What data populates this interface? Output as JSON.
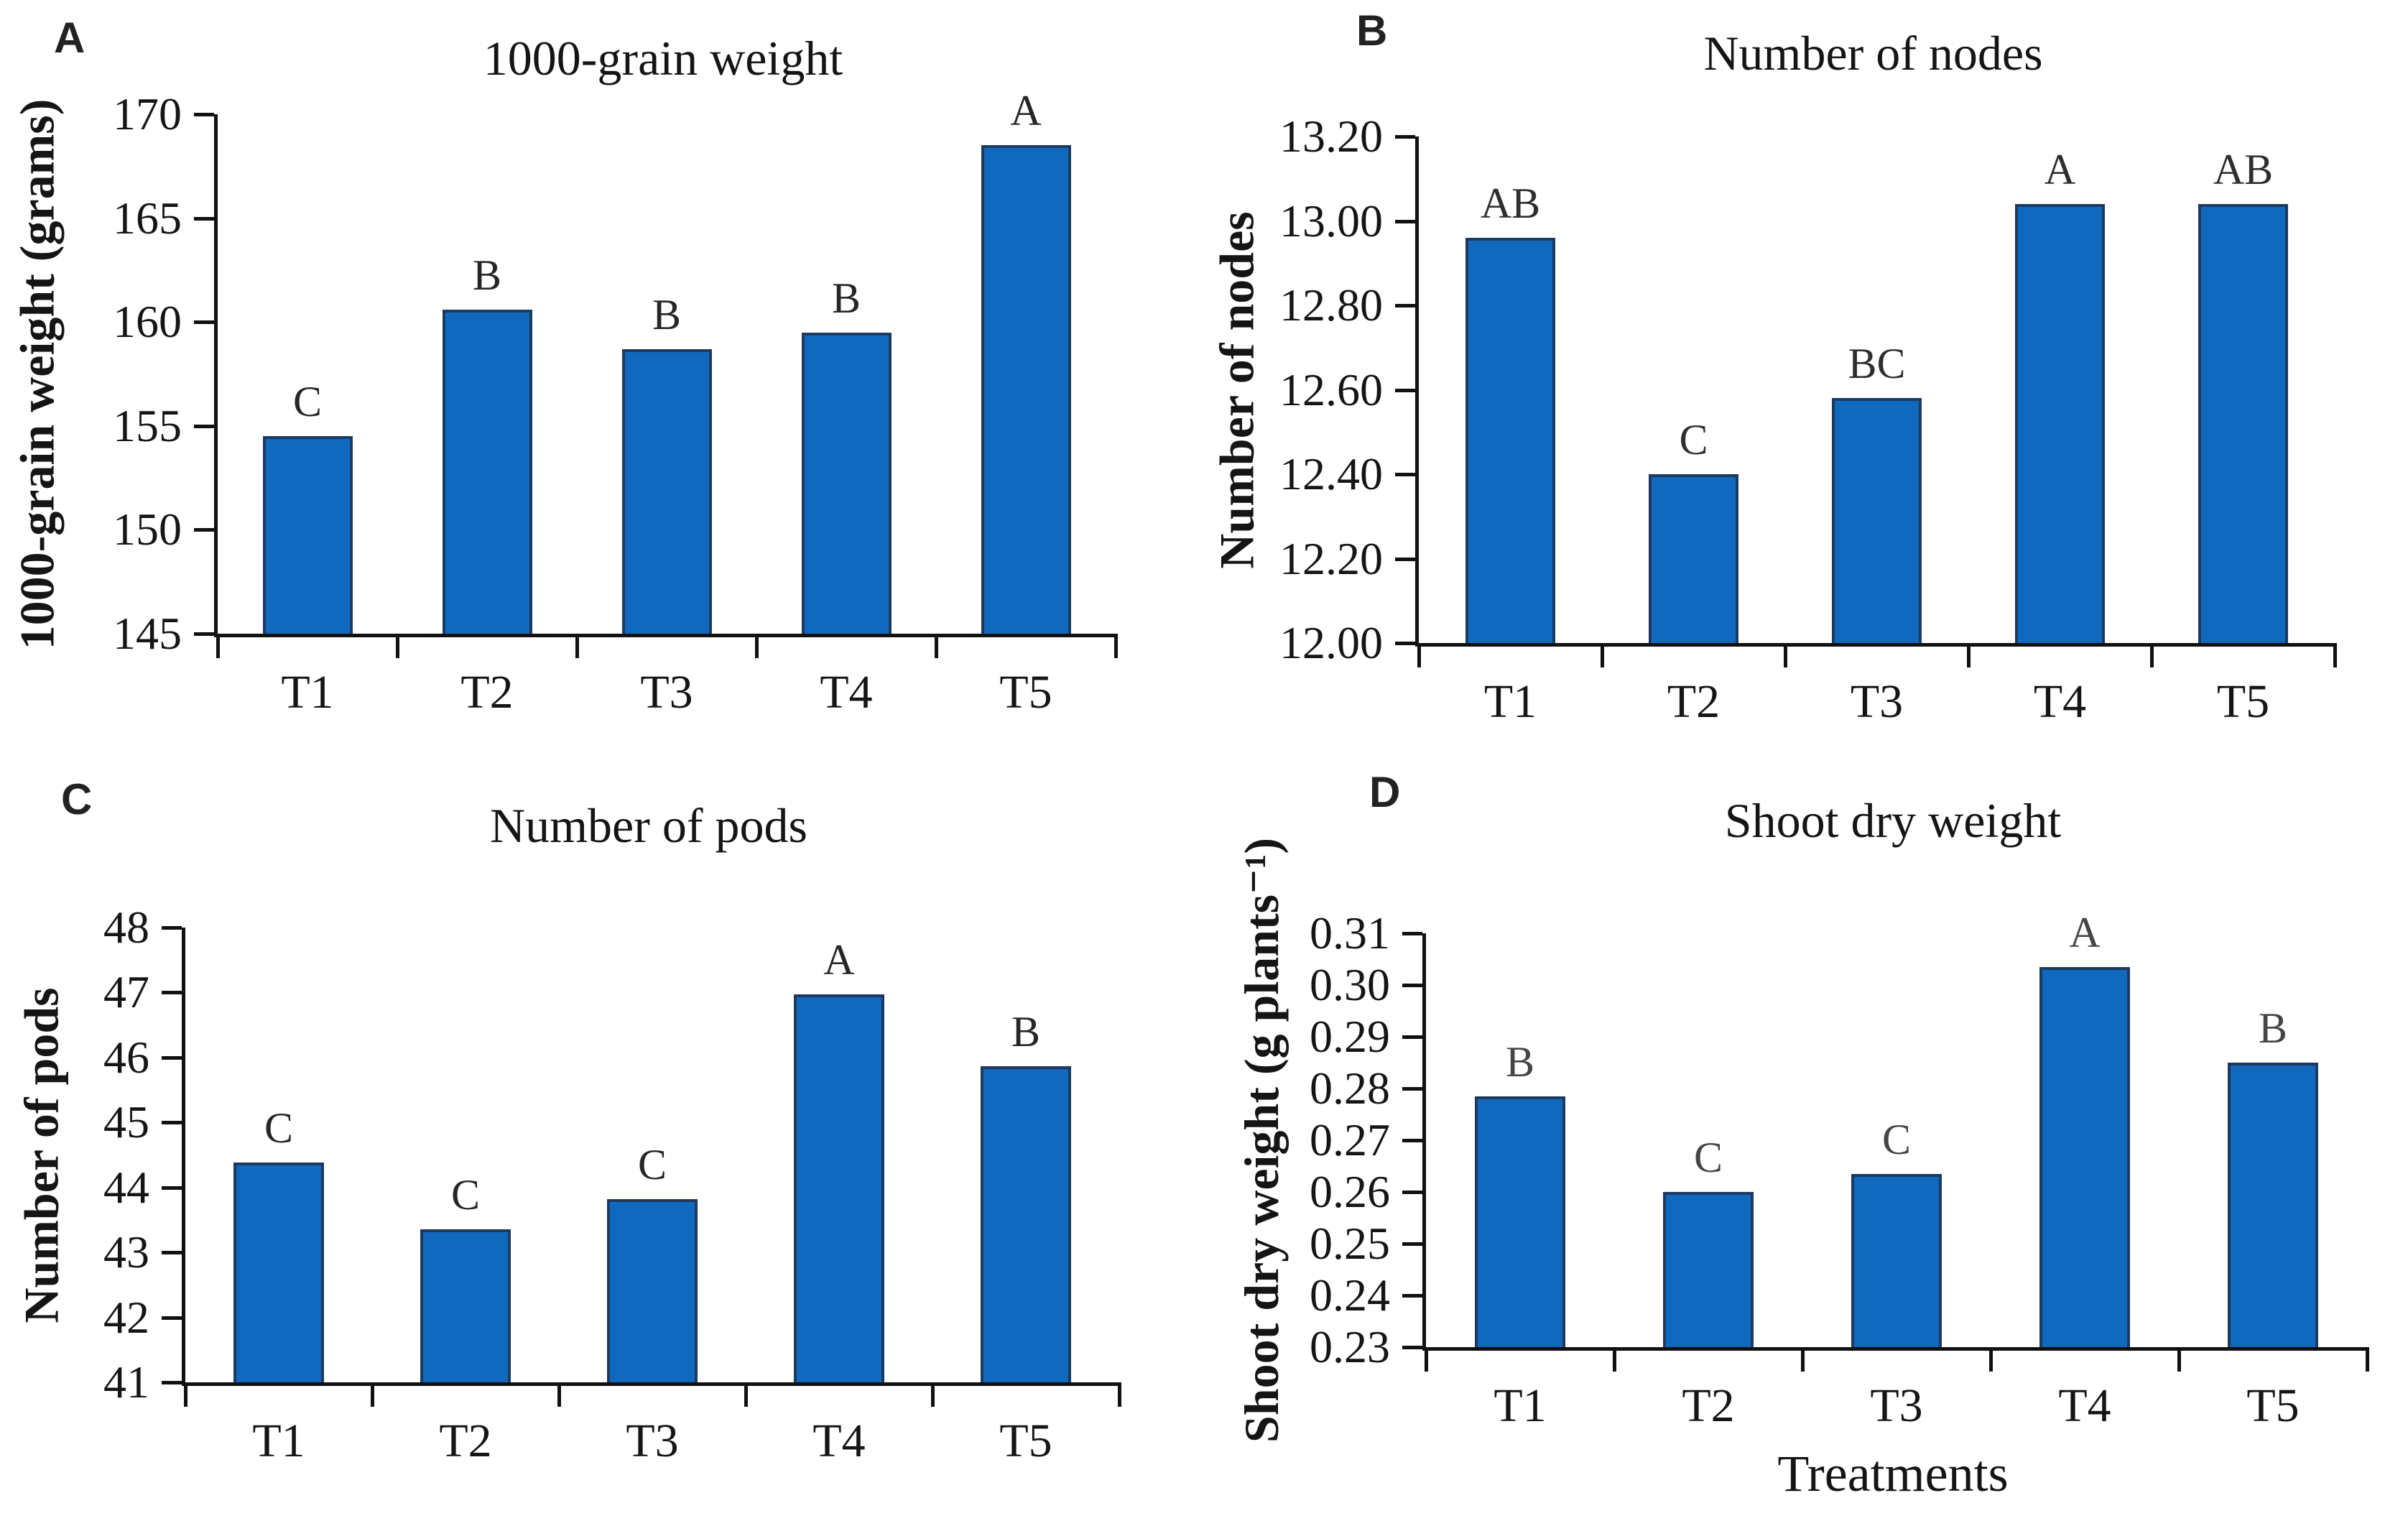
{
  "colors": {
    "bar_fill": "#1169be",
    "bar_border": "#1c3a60",
    "axis": "#111111",
    "text": "#1a1a1a"
  },
  "chart_data": [
    {
      "type": "bar",
      "panel_label": "A",
      "title": "1000-grain weight",
      "ylabel": "1000-grain weight (grams)",
      "categories": [
        "T1",
        "T2",
        "T3",
        "T4",
        "T5"
      ],
      "values": [
        154.5,
        160.6,
        158.7,
        159.5,
        168.5
      ],
      "sig_letters": [
        "C",
        "B",
        "B",
        "B",
        "A"
      ],
      "ylim": [
        145,
        170
      ],
      "ytick_values": [
        145,
        150,
        155,
        160,
        165,
        170
      ],
      "ytick_labels": [
        "145",
        "150",
        "155",
        "160",
        "165",
        "170"
      ],
      "grid": "off",
      "legend": "none",
      "bar_color": "#1169be",
      "bar_border": "#1c3a60",
      "sig_color": "#262626"
    },
    {
      "type": "bar",
      "panel_label": "B",
      "title": "Number of nodes",
      "ylabel": "Number of nodes",
      "categories": [
        "T1",
        "T2",
        "T3",
        "T4",
        "T5"
      ],
      "values": [
        12.96,
        12.4,
        12.58,
        13.04,
        13.04
      ],
      "sig_letters": [
        "AB",
        "C",
        "BC",
        "A",
        "AB"
      ],
      "ylim": [
        12.0,
        13.2
      ],
      "ytick_values": [
        12.0,
        12.2,
        12.4,
        12.6,
        12.8,
        13.0,
        13.2
      ],
      "ytick_labels": [
        "12.00",
        "12.20",
        "12.40",
        "12.60",
        "12.80",
        "13.00",
        "13.20"
      ],
      "grid": "off",
      "legend": "none",
      "bar_color": "#1169be",
      "bar_border": "#1c3a60",
      "sig_color": "#2e2e2e"
    },
    {
      "type": "bar",
      "panel_label": "C",
      "title": "Number of pods",
      "ylabel": "Number of pods",
      "categories": [
        "T1",
        "T2",
        "T3",
        "T4",
        "T5"
      ],
      "values": [
        44.38,
        43.35,
        43.82,
        46.97,
        45.87
      ],
      "sig_letters": [
        "C",
        "C",
        "C",
        "A",
        "B"
      ],
      "ylim": [
        41,
        48
      ],
      "ytick_values": [
        41,
        42,
        43,
        44,
        45,
        46,
        47,
        48
      ],
      "ytick_labels": [
        "41",
        "42",
        "43",
        "44",
        "45",
        "46",
        "47",
        "48"
      ],
      "grid": "off",
      "legend": "none",
      "bar_color": "#1169be",
      "bar_border": "#1c3a60",
      "sig_color": "#262626"
    },
    {
      "type": "bar",
      "panel_label": "D",
      "title": "Shoot dry weight",
      "ylabel": "Shoot dry weight  (g plants⁻¹)",
      "xlabel": "Treatments",
      "categories": [
        "T1",
        "T2",
        "T3",
        "T4",
        "T5"
      ],
      "values": [
        0.2785,
        0.26,
        0.2635,
        0.3035,
        0.285
      ],
      "sig_letters": [
        "B",
        "C",
        "C",
        "A",
        "B"
      ],
      "ylim": [
        0.23,
        0.31
      ],
      "ytick_values": [
        0.23,
        0.24,
        0.25,
        0.26,
        0.27,
        0.28,
        0.29,
        0.3,
        0.31
      ],
      "ytick_labels": [
        "0.23",
        "0.24",
        "0.25",
        "0.26",
        "0.27",
        "0.28",
        "0.29",
        "0.30",
        "0.31"
      ],
      "grid": "off",
      "legend": "none",
      "bar_color": "#1169be",
      "bar_border": "#1c3a60",
      "sig_color": "#454545"
    }
  ]
}
